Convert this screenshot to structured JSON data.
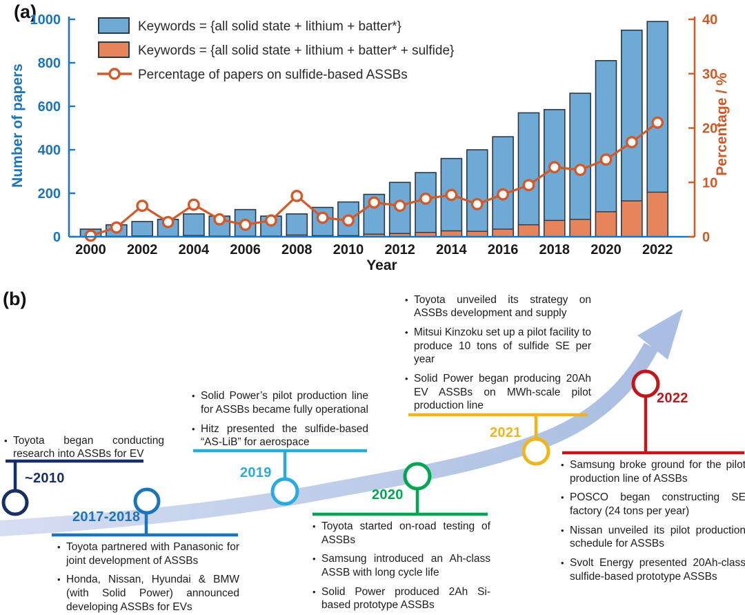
{
  "panel_a_label": "(a)",
  "panel_b_label": "(b)",
  "chart_data": {
    "type": "bar+line",
    "x": [
      2000,
      2001,
      2002,
      2003,
      2004,
      2005,
      2006,
      2007,
      2008,
      2009,
      2010,
      2011,
      2012,
      2013,
      2014,
      2015,
      2016,
      2017,
      2018,
      2019,
      2020,
      2021,
      2022
    ],
    "series": [
      {
        "name": "Keywords = {all solid state + lithium + batter*}",
        "type": "bar",
        "axis": "left",
        "color": "#6fa9d5",
        "values": [
          35,
          55,
          70,
          80,
          105,
          95,
          125,
          95,
          105,
          135,
          160,
          195,
          250,
          295,
          360,
          400,
          460,
          570,
          585,
          660,
          810,
          950,
          990
        ]
      },
      {
        "name": "Keywords = {all solid state + lithium + batter* + sulfide}",
        "type": "bar",
        "axis": "left",
        "color": "#e6845c",
        "values": [
          1,
          2,
          4,
          2,
          6,
          3,
          3,
          3,
          8,
          5,
          5,
          12,
          15,
          20,
          27,
          25,
          35,
          55,
          75,
          80,
          115,
          165,
          205
        ]
      },
      {
        "name": "Percentage of papers on sulfide-based ASSBs",
        "type": "line",
        "axis": "right",
        "color": "#d35a28",
        "values": [
          0.2,
          1.7,
          5.7,
          2.7,
          5.9,
          3.2,
          2.2,
          3.0,
          7.5,
          3.5,
          3.0,
          6.3,
          5.7,
          7.0,
          7.7,
          6.0,
          7.8,
          9.5,
          12.8,
          12.3,
          14.2,
          17.4,
          21.0
        ]
      }
    ],
    "xlabel": "Year",
    "ylabel_left": "Number of papers",
    "ylabel_right": "Percentage / %",
    "ylim_left": [
      0,
      1000
    ],
    "ylim_right": [
      0,
      40
    ],
    "yticks_left": [
      0,
      200,
      400,
      600,
      800,
      1000
    ],
    "yticks_right": [
      0,
      10,
      20,
      30,
      40
    ],
    "xticks": [
      2000,
      2002,
      2004,
      2006,
      2008,
      2010,
      2012,
      2014,
      2016,
      2018,
      2020,
      2022
    ],
    "legend_position": "top-left-inside",
    "grid": "off",
    "colors": {
      "left_axis": "#1b75bc",
      "right_axis": "#cf5a28",
      "bar_edge": "#2a3744",
      "legend_text": "#2a2a2a",
      "xtick_text": "#1a1a1a"
    }
  },
  "timeline": {
    "arrow_color_start": "#d6def2",
    "arrow_color_end": "#a9bee2",
    "milestones": [
      {
        "year": "~2010",
        "color": "#172f66",
        "bullets": [
          "Toyota began conducting research into ASSBs for EV"
        ]
      },
      {
        "year": "2017-2018",
        "color": "#1b75bc",
        "bullets": [
          "Toyota partnered with Panasonic for joint development of ASSBs",
          "Honda, Nissan, Hyundai & BMW (with Solid Power) announced developing ASSBs for EVs"
        ]
      },
      {
        "year": "2019",
        "color": "#29aae1",
        "bullets": [
          "Solid Power’s pilot production line for ASSBs became fully operational",
          "Hitz presented the sulfide-based “AS-LiB” for aerospace"
        ]
      },
      {
        "year": "2020",
        "color": "#00a651",
        "bullets": [
          "Toyota started on-road testing of ASSBs",
          "Samsung introduced an Ah-class ASSB with long cycle life",
          "Solid Power produced 2Ah Si-based prototype ASSBs"
        ]
      },
      {
        "year": "2021",
        "color": "#f0b41c",
        "bullets": [
          "Toyota unveiled its strategy on ASSBs development and supply",
          "Mitsui Kinzoku set up a pilot facility to produce 10 tons of sulfide SE per year",
          "Solid Power began producing 20Ah EV ASSBs on MWh-scale pilot production line"
        ]
      },
      {
        "year": "2022",
        "color": "#c1171c",
        "bullets": [
          "Samsung broke ground for the pilot production line of ASSBs",
          "POSCO began constructing SE factory (24 tons per year)",
          "Nissan unveiled its pilot production schedule for ASSBs",
          "Svolt Energy presented 20Ah-class sulfide-based prototype ASSBs"
        ]
      }
    ]
  }
}
